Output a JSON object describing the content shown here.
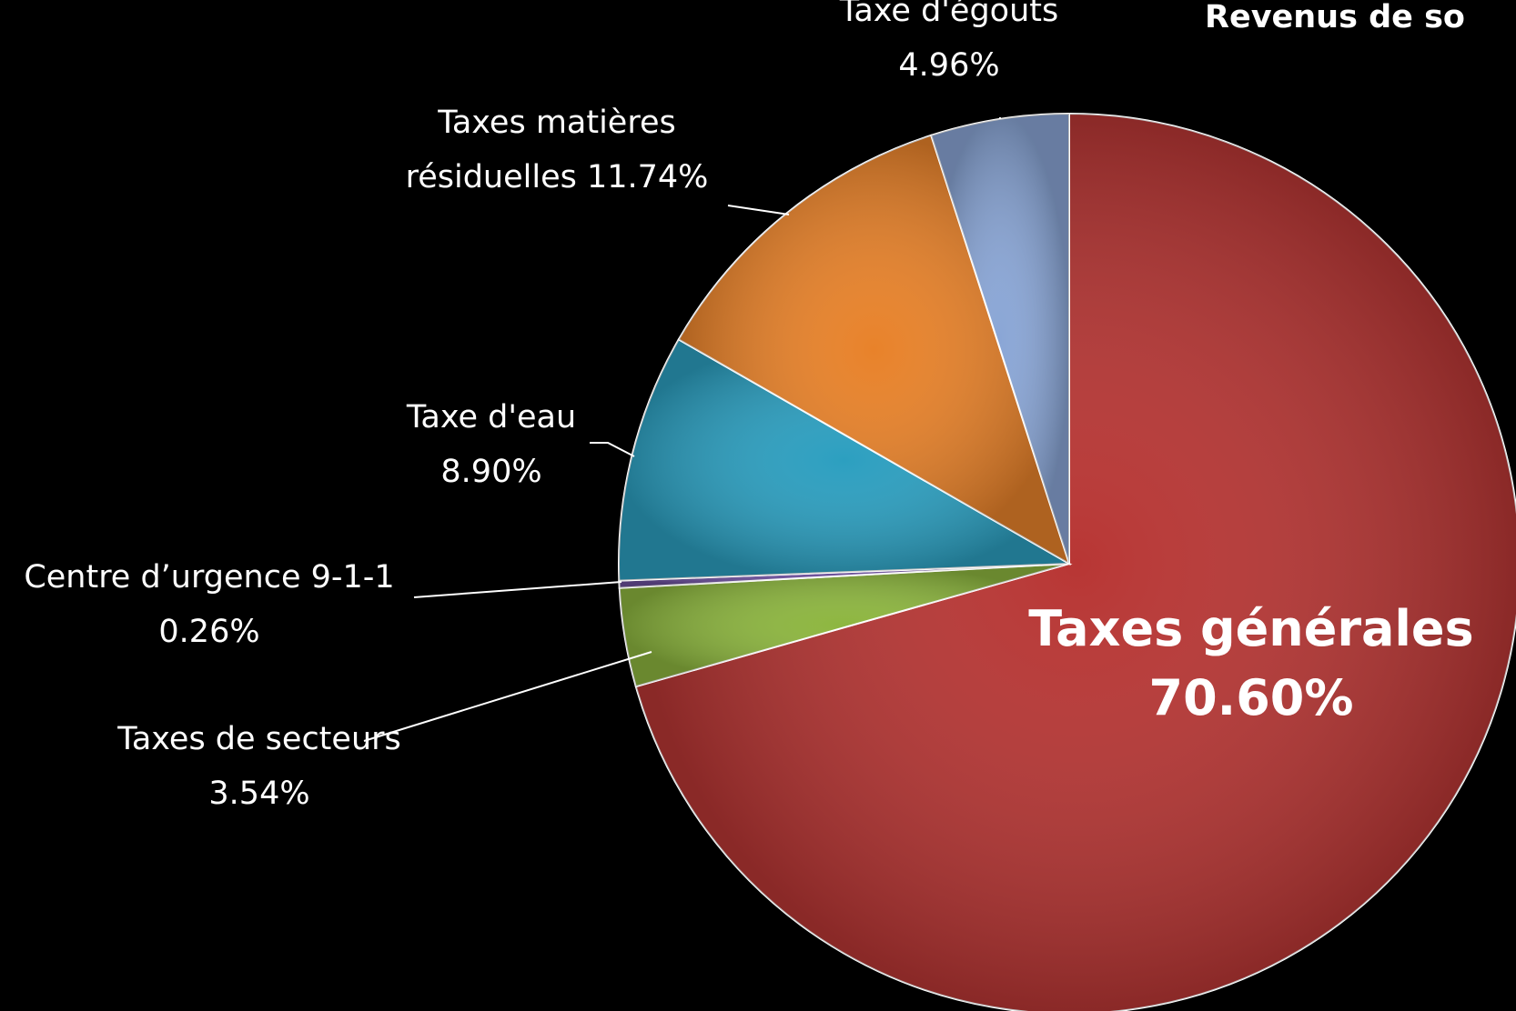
{
  "chart_data": {
    "type": "pie",
    "title": "Revenus de so",
    "slices": [
      {
        "label_lines": [
          "Taxes générales",
          "70.60%"
        ],
        "value": 70.6,
        "color": "#b83634",
        "big": true
      },
      {
        "label_lines": [
          "Taxes de secteurs",
          "3.54%"
        ],
        "value": 3.54,
        "color": "#8db63f"
      },
      {
        "label_lines": [
          "Centre d’urgence 9-1-1",
          "0.26%"
        ],
        "value": 0.26,
        "color": "#6b4f9a"
      },
      {
        "label_lines": [
          "Taxe d'eau",
          "8.90%"
        ],
        "value": 8.9,
        "color": "#2c9fc0"
      },
      {
        "label_lines": [
          "Taxes  matières",
          "résiduelles 11.74%"
        ],
        "value": 11.74,
        "color": "#e8822a"
      },
      {
        "label_lines": [
          "Taxe d'égouts",
          "4.96%"
        ],
        "value": 4.96,
        "color": "#8aa6d6"
      }
    ]
  }
}
